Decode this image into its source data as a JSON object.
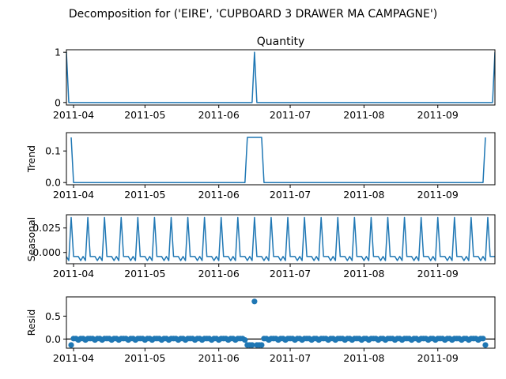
{
  "figure": {
    "title": "Decomposition for ('EIRE', 'CUPBOARD 3 DRAWER MA CAMPAGNE')",
    "line_color": "#1f77b4",
    "x_tick_labels": [
      "2011-04",
      "2011-05",
      "2011-06",
      "2011-07",
      "2011-08",
      "2011-09"
    ]
  },
  "chart_data": [
    {
      "type": "line",
      "panel": "observed",
      "title": "Quantity",
      "ylabel": "",
      "x_range": [
        "2011-03-29",
        "2011-09-25"
      ],
      "ylim": [
        -0.05,
        1.05
      ],
      "y_ticks": [
        0,
        1
      ],
      "y_tick_labels": [
        "0",
        "1"
      ],
      "series": [
        {
          "points": [
            [
              "2011-03-29",
              1
            ],
            [
              "2011-03-30",
              0
            ],
            [
              "2011-06-15",
              0
            ],
            [
              "2011-06-16",
              1
            ],
            [
              "2011-06-17",
              0
            ],
            [
              "2011-09-24",
              0
            ],
            [
              "2011-09-25",
              1
            ]
          ]
        }
      ]
    },
    {
      "type": "line",
      "panel": "trend",
      "title": "",
      "ylabel": "Trend",
      "x_range": [
        "2011-03-29",
        "2011-09-25"
      ],
      "ylim": [
        -0.007,
        0.158
      ],
      "y_ticks": [
        0,
        0.1
      ],
      "y_tick_labels": [
        "0.0",
        "0.1"
      ],
      "series": [
        {
          "points": [
            [
              "2011-03-31",
              0.1429
            ],
            [
              "2011-04-01",
              0
            ],
            [
              "2011-06-12",
              0
            ],
            [
              "2011-06-13",
              0.1429
            ],
            [
              "2011-06-19",
              0.1429
            ],
            [
              "2011-06-20",
              0
            ],
            [
              "2011-09-20",
              0
            ],
            [
              "2011-09-21",
              0.1429
            ]
          ]
        }
      ]
    },
    {
      "type": "line",
      "panel": "seasonal",
      "title": "",
      "ylabel": "Seasonal",
      "x_range": [
        "2011-03-29",
        "2011-09-25"
      ],
      "ylim": [
        -0.0115,
        0.0385
      ],
      "y_ticks": [
        0,
        0.025
      ],
      "y_tick_labels": [
        "0.000",
        "0.025"
      ],
      "period_days": 7,
      "first_peak": "2011-03-31",
      "weekly_pattern": [
        0.0357,
        -0.0041,
        -0.0041,
        -0.0041,
        -0.0083,
        -0.0041,
        -0.0083
      ]
    },
    {
      "type": "scatter",
      "panel": "resid",
      "title": "",
      "ylabel": "Resid",
      "x_range": [
        "2011-03-29",
        "2011-09-25"
      ],
      "ylim": [
        -0.2,
        0.92
      ],
      "y_ticks": [
        0,
        0.5
      ],
      "y_tick_labels": [
        "0.0",
        "0.5"
      ],
      "zero_line": true,
      "resid_range": [
        "2011-03-31",
        "2011-09-21"
      ],
      "outliers": [
        [
          "2011-03-31",
          -0.13
        ],
        [
          "2011-06-13",
          -0.13
        ],
        [
          "2011-06-14",
          -0.13
        ],
        [
          "2011-06-15",
          -0.13
        ],
        [
          "2011-06-16",
          0.82
        ],
        [
          "2011-06-17",
          -0.13
        ],
        [
          "2011-06-18",
          -0.13
        ],
        [
          "2011-06-19",
          -0.13
        ],
        [
          "2011-09-21",
          -0.13
        ]
      ]
    }
  ]
}
